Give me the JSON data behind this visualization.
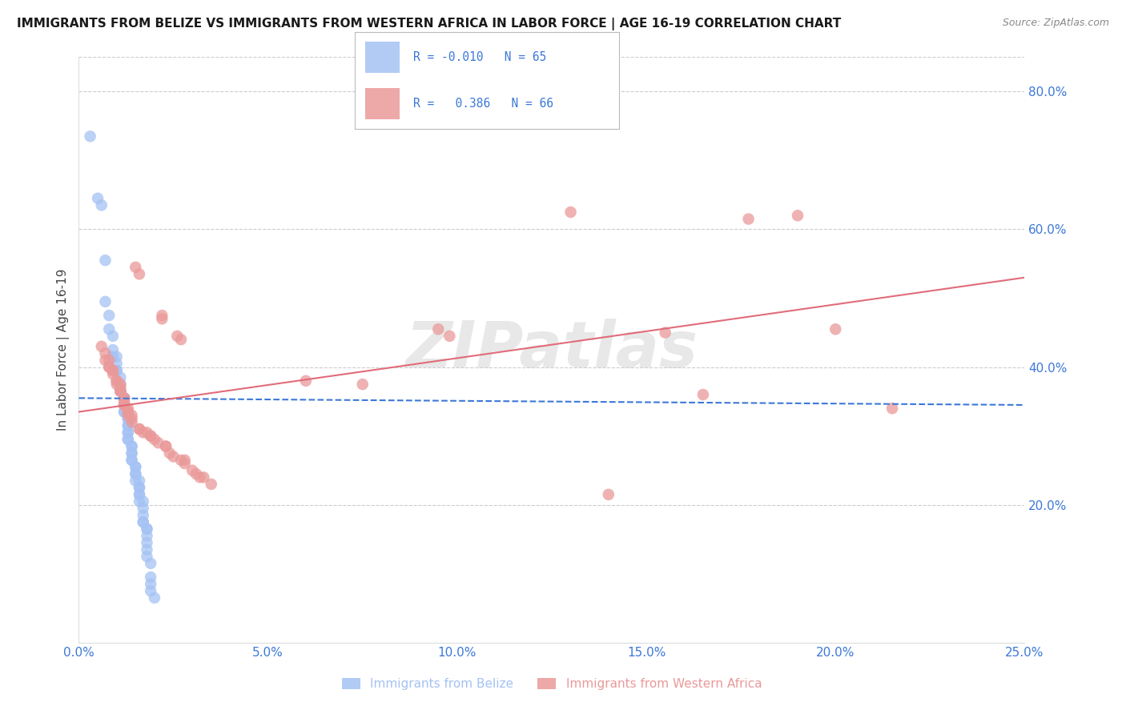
{
  "title": "IMMIGRANTS FROM BELIZE VS IMMIGRANTS FROM WESTERN AFRICA IN LABOR FORCE | AGE 16-19 CORRELATION CHART",
  "source": "Source: ZipAtlas.com",
  "ylabel_left": "In Labor Force | Age 16-19",
  "xmin": 0.0,
  "xmax": 0.25,
  "ymin": 0.0,
  "ymax": 0.85,
  "belize_color": "#a4c2f4",
  "western_africa_color": "#ea9999",
  "belize_line_color": "#3c78d8",
  "western_africa_line_color": "#e06c7a",
  "watermark": "ZIPatlas",
  "belize_line_y0": 0.355,
  "belize_line_y1": 0.345,
  "wa_line_y0": 0.335,
  "wa_line_y1": 0.53,
  "yticks_right": [
    0.2,
    0.4,
    0.6,
    0.8
  ],
  "xticks": [
    0.0,
    0.05,
    0.1,
    0.15,
    0.2,
    0.25
  ],
  "legend_label_1": "R = -0.010   N = 65",
  "legend_label_2": "R =   0.386   N = 66",
  "belize_points": [
    [
      0.003,
      0.735
    ],
    [
      0.005,
      0.645
    ],
    [
      0.006,
      0.635
    ],
    [
      0.007,
      0.555
    ],
    [
      0.007,
      0.495
    ],
    [
      0.008,
      0.475
    ],
    [
      0.008,
      0.455
    ],
    [
      0.009,
      0.445
    ],
    [
      0.009,
      0.425
    ],
    [
      0.009,
      0.415
    ],
    [
      0.01,
      0.415
    ],
    [
      0.01,
      0.405
    ],
    [
      0.01,
      0.395
    ],
    [
      0.01,
      0.395
    ],
    [
      0.011,
      0.385
    ],
    [
      0.011,
      0.375
    ],
    [
      0.011,
      0.365
    ],
    [
      0.011,
      0.365
    ],
    [
      0.012,
      0.355
    ],
    [
      0.012,
      0.355
    ],
    [
      0.012,
      0.345
    ],
    [
      0.012,
      0.345
    ],
    [
      0.012,
      0.335
    ],
    [
      0.012,
      0.335
    ],
    [
      0.013,
      0.325
    ],
    [
      0.013,
      0.325
    ],
    [
      0.013,
      0.315
    ],
    [
      0.013,
      0.315
    ],
    [
      0.013,
      0.305
    ],
    [
      0.013,
      0.305
    ],
    [
      0.013,
      0.295
    ],
    [
      0.013,
      0.295
    ],
    [
      0.014,
      0.285
    ],
    [
      0.014,
      0.285
    ],
    [
      0.014,
      0.275
    ],
    [
      0.014,
      0.275
    ],
    [
      0.014,
      0.265
    ],
    [
      0.014,
      0.265
    ],
    [
      0.015,
      0.255
    ],
    [
      0.015,
      0.255
    ],
    [
      0.015,
      0.245
    ],
    [
      0.015,
      0.245
    ],
    [
      0.015,
      0.235
    ],
    [
      0.016,
      0.235
    ],
    [
      0.016,
      0.225
    ],
    [
      0.016,
      0.225
    ],
    [
      0.016,
      0.215
    ],
    [
      0.016,
      0.215
    ],
    [
      0.016,
      0.205
    ],
    [
      0.017,
      0.205
    ],
    [
      0.017,
      0.195
    ],
    [
      0.017,
      0.185
    ],
    [
      0.017,
      0.175
    ],
    [
      0.017,
      0.175
    ],
    [
      0.018,
      0.165
    ],
    [
      0.018,
      0.165
    ],
    [
      0.018,
      0.155
    ],
    [
      0.018,
      0.145
    ],
    [
      0.018,
      0.135
    ],
    [
      0.018,
      0.125
    ],
    [
      0.019,
      0.115
    ],
    [
      0.019,
      0.095
    ],
    [
      0.019,
      0.085
    ],
    [
      0.019,
      0.075
    ],
    [
      0.02,
      0.065
    ]
  ],
  "wa_points": [
    [
      0.006,
      0.43
    ],
    [
      0.007,
      0.42
    ],
    [
      0.007,
      0.41
    ],
    [
      0.008,
      0.41
    ],
    [
      0.008,
      0.4
    ],
    [
      0.008,
      0.4
    ],
    [
      0.009,
      0.395
    ],
    [
      0.009,
      0.395
    ],
    [
      0.009,
      0.39
    ],
    [
      0.01,
      0.38
    ],
    [
      0.01,
      0.38
    ],
    [
      0.01,
      0.375
    ],
    [
      0.011,
      0.375
    ],
    [
      0.011,
      0.37
    ],
    [
      0.011,
      0.365
    ],
    [
      0.011,
      0.365
    ],
    [
      0.012,
      0.355
    ],
    [
      0.012,
      0.355
    ],
    [
      0.012,
      0.35
    ],
    [
      0.012,
      0.345
    ],
    [
      0.012,
      0.345
    ],
    [
      0.013,
      0.34
    ],
    [
      0.013,
      0.335
    ],
    [
      0.013,
      0.335
    ],
    [
      0.013,
      0.33
    ],
    [
      0.014,
      0.33
    ],
    [
      0.014,
      0.325
    ],
    [
      0.014,
      0.32
    ],
    [
      0.015,
      0.545
    ],
    [
      0.016,
      0.535
    ],
    [
      0.016,
      0.31
    ],
    [
      0.016,
      0.31
    ],
    [
      0.017,
      0.305
    ],
    [
      0.018,
      0.305
    ],
    [
      0.019,
      0.3
    ],
    [
      0.019,
      0.3
    ],
    [
      0.02,
      0.295
    ],
    [
      0.021,
      0.29
    ],
    [
      0.022,
      0.475
    ],
    [
      0.022,
      0.47
    ],
    [
      0.023,
      0.285
    ],
    [
      0.023,
      0.285
    ],
    [
      0.024,
      0.275
    ],
    [
      0.025,
      0.27
    ],
    [
      0.026,
      0.445
    ],
    [
      0.027,
      0.44
    ],
    [
      0.027,
      0.265
    ],
    [
      0.028,
      0.265
    ],
    [
      0.028,
      0.26
    ],
    [
      0.03,
      0.25
    ],
    [
      0.031,
      0.245
    ],
    [
      0.032,
      0.24
    ],
    [
      0.033,
      0.24
    ],
    [
      0.035,
      0.23
    ],
    [
      0.06,
      0.38
    ],
    [
      0.075,
      0.375
    ],
    [
      0.095,
      0.455
    ],
    [
      0.098,
      0.445
    ],
    [
      0.13,
      0.625
    ],
    [
      0.14,
      0.215
    ],
    [
      0.155,
      0.45
    ],
    [
      0.165,
      0.36
    ],
    [
      0.177,
      0.615
    ],
    [
      0.19,
      0.62
    ],
    [
      0.2,
      0.455
    ],
    [
      0.215,
      0.34
    ]
  ]
}
